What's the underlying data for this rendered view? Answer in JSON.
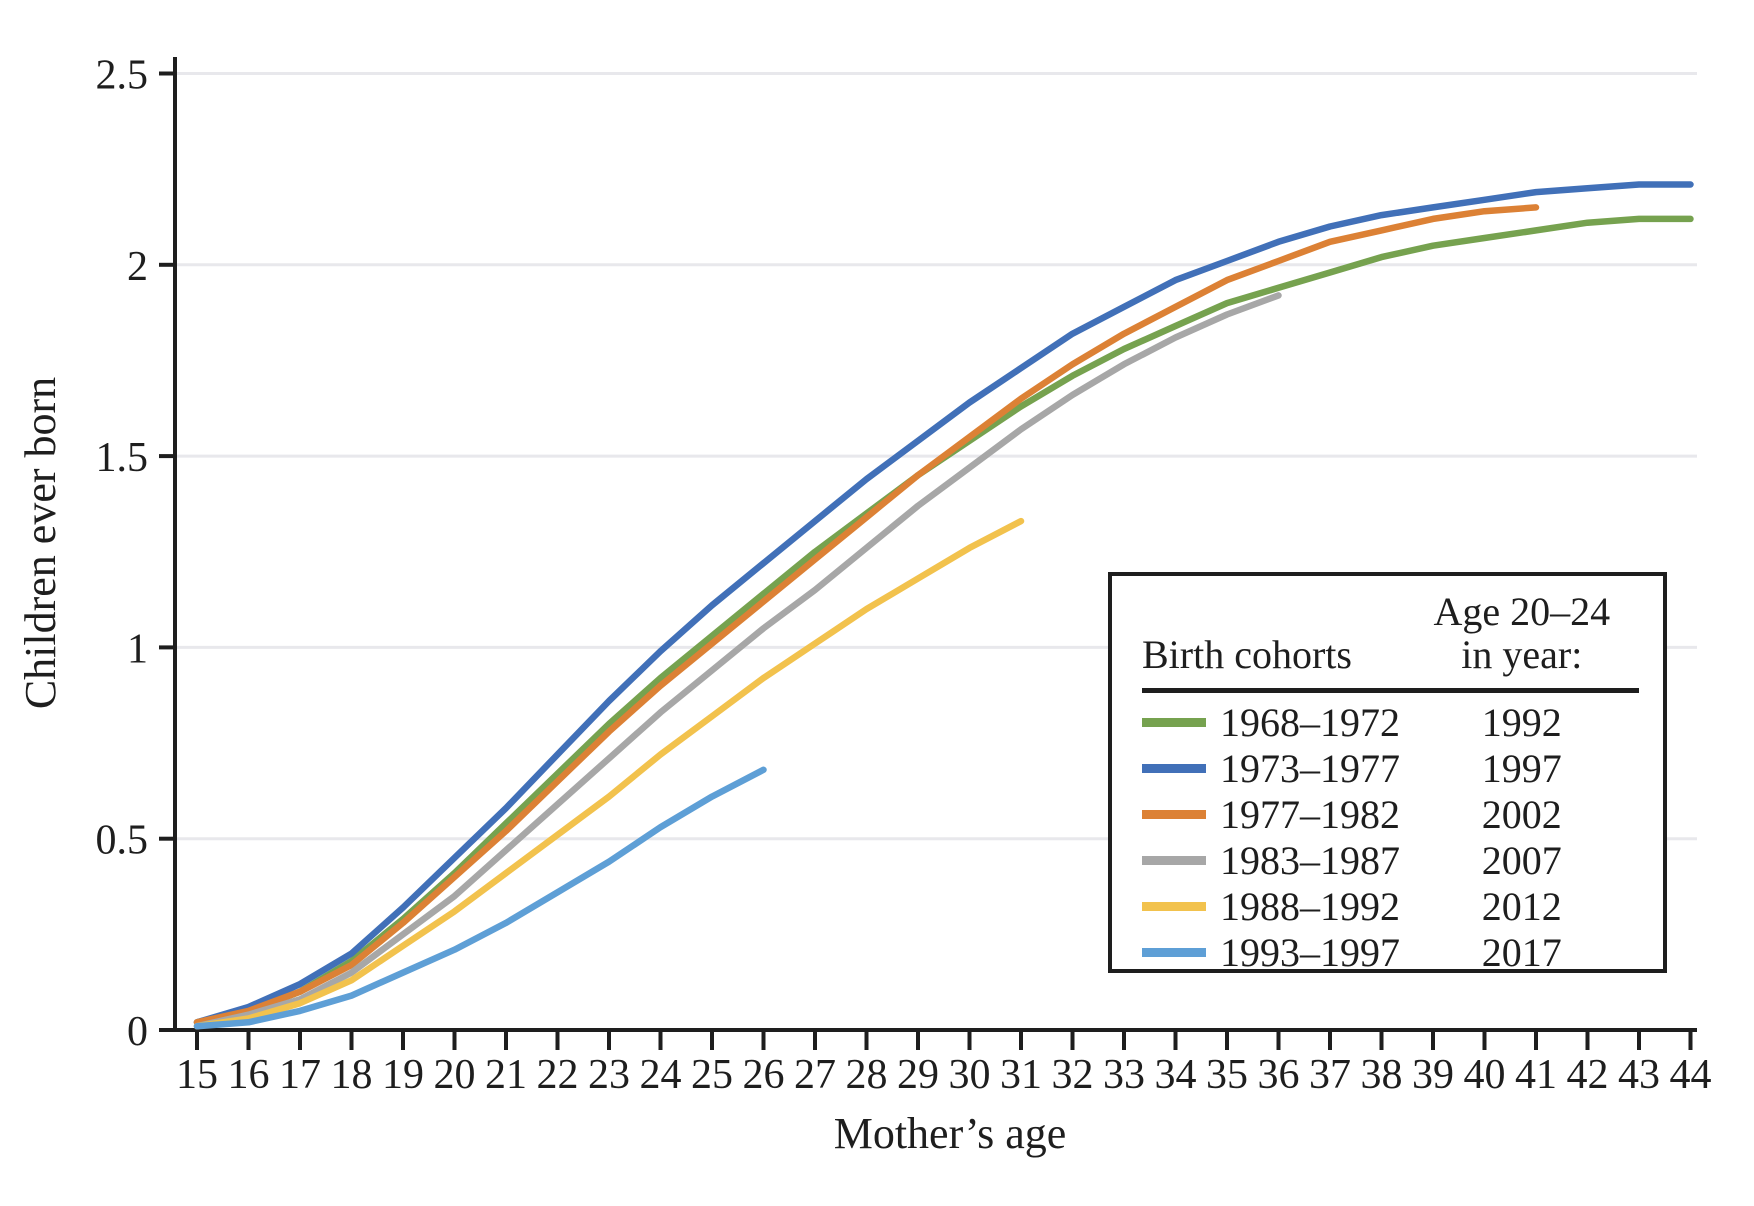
{
  "figure": {
    "ylabel": "Children ever born",
    "xlabel": "Mother’s age",
    "colors": {
      "axis": "#1e1e1e",
      "grid": "#e8e8ec",
      "background": "#ffffff"
    },
    "legend": {
      "col1_header": "Birth cohorts",
      "col2_header_line1": "Age 20–24",
      "col2_header_line2": "in year:"
    }
  },
  "chart_data": {
    "type": "line",
    "title": "",
    "xlabel": "Mother’s age",
    "ylabel": "Children ever born",
    "xlim": [
      15,
      44
    ],
    "ylim": [
      0,
      2.5
    ],
    "grid": "horizontal",
    "legend_position": "inside lower right",
    "x_ticks": [
      15,
      16,
      17,
      18,
      19,
      20,
      21,
      22,
      23,
      24,
      25,
      26,
      27,
      28,
      29,
      30,
      31,
      32,
      33,
      34,
      35,
      36,
      37,
      38,
      39,
      40,
      41,
      42,
      43,
      44
    ],
    "y_ticks": [
      {
        "label": "0",
        "value": 0
      },
      {
        "label": "0.5",
        "value": 0.5
      },
      {
        "label": "1",
        "value": 1
      },
      {
        "label": "1.5",
        "value": 1.5
      },
      {
        "label": "2",
        "value": 2
      },
      {
        "label": "2.5",
        "value": 2.5
      }
    ],
    "series": [
      {
        "name": "1968–1972",
        "age_20_24_in_year": "1992",
        "color": "#76A24F",
        "start_age": 15,
        "end_age": 44,
        "values": [
          0.02,
          0.05,
          0.1,
          0.18,
          0.29,
          0.41,
          0.54,
          0.67,
          0.8,
          0.92,
          1.03,
          1.14,
          1.25,
          1.35,
          1.45,
          1.54,
          1.63,
          1.71,
          1.78,
          1.84,
          1.9,
          1.94,
          1.98,
          2.02,
          2.05,
          2.07,
          2.09,
          2.11,
          2.12,
          2.12
        ]
      },
      {
        "name": "1973–1977",
        "age_20_24_in_year": "1997",
        "color": "#4170B8",
        "start_age": 15,
        "end_age": 44,
        "values": [
          0.02,
          0.06,
          0.12,
          0.2,
          0.32,
          0.45,
          0.58,
          0.72,
          0.86,
          0.99,
          1.11,
          1.22,
          1.33,
          1.44,
          1.54,
          1.64,
          1.73,
          1.82,
          1.89,
          1.96,
          2.01,
          2.06,
          2.1,
          2.13,
          2.15,
          2.17,
          2.19,
          2.2,
          2.21,
          2.21
        ]
      },
      {
        "name": "1977–1982",
        "age_20_24_in_year": "2002",
        "color": "#DC8135",
        "start_age": 15,
        "end_age": 41,
        "values": [
          0.02,
          0.05,
          0.1,
          0.17,
          0.28,
          0.4,
          0.52,
          0.65,
          0.78,
          0.9,
          1.01,
          1.12,
          1.23,
          1.34,
          1.45,
          1.55,
          1.65,
          1.74,
          1.82,
          1.89,
          1.96,
          2.01,
          2.06,
          2.09,
          2.12,
          2.14,
          2.15
        ]
      },
      {
        "name": "1983–1987",
        "age_20_24_in_year": "2007",
        "color": "#A7A7A7",
        "start_age": 15,
        "end_age": 36,
        "values": [
          0.01,
          0.04,
          0.08,
          0.15,
          0.25,
          0.35,
          0.47,
          0.59,
          0.71,
          0.83,
          0.94,
          1.05,
          1.15,
          1.26,
          1.37,
          1.47,
          1.57,
          1.66,
          1.74,
          1.81,
          1.87,
          1.92
        ]
      },
      {
        "name": "1988–1992",
        "age_20_24_in_year": "2012",
        "color": "#F2C24D",
        "start_age": 15,
        "end_age": 31,
        "values": [
          0.01,
          0.03,
          0.07,
          0.13,
          0.22,
          0.31,
          0.41,
          0.51,
          0.61,
          0.72,
          0.82,
          0.92,
          1.01,
          1.1,
          1.18,
          1.26,
          1.33
        ]
      },
      {
        "name": "1993–1997",
        "age_20_24_in_year": "2017",
        "color": "#5E9FD6",
        "start_age": 15,
        "end_age": 26,
        "values": [
          0.01,
          0.02,
          0.05,
          0.09,
          0.15,
          0.21,
          0.28,
          0.36,
          0.44,
          0.53,
          0.61,
          0.68
        ]
      }
    ]
  }
}
